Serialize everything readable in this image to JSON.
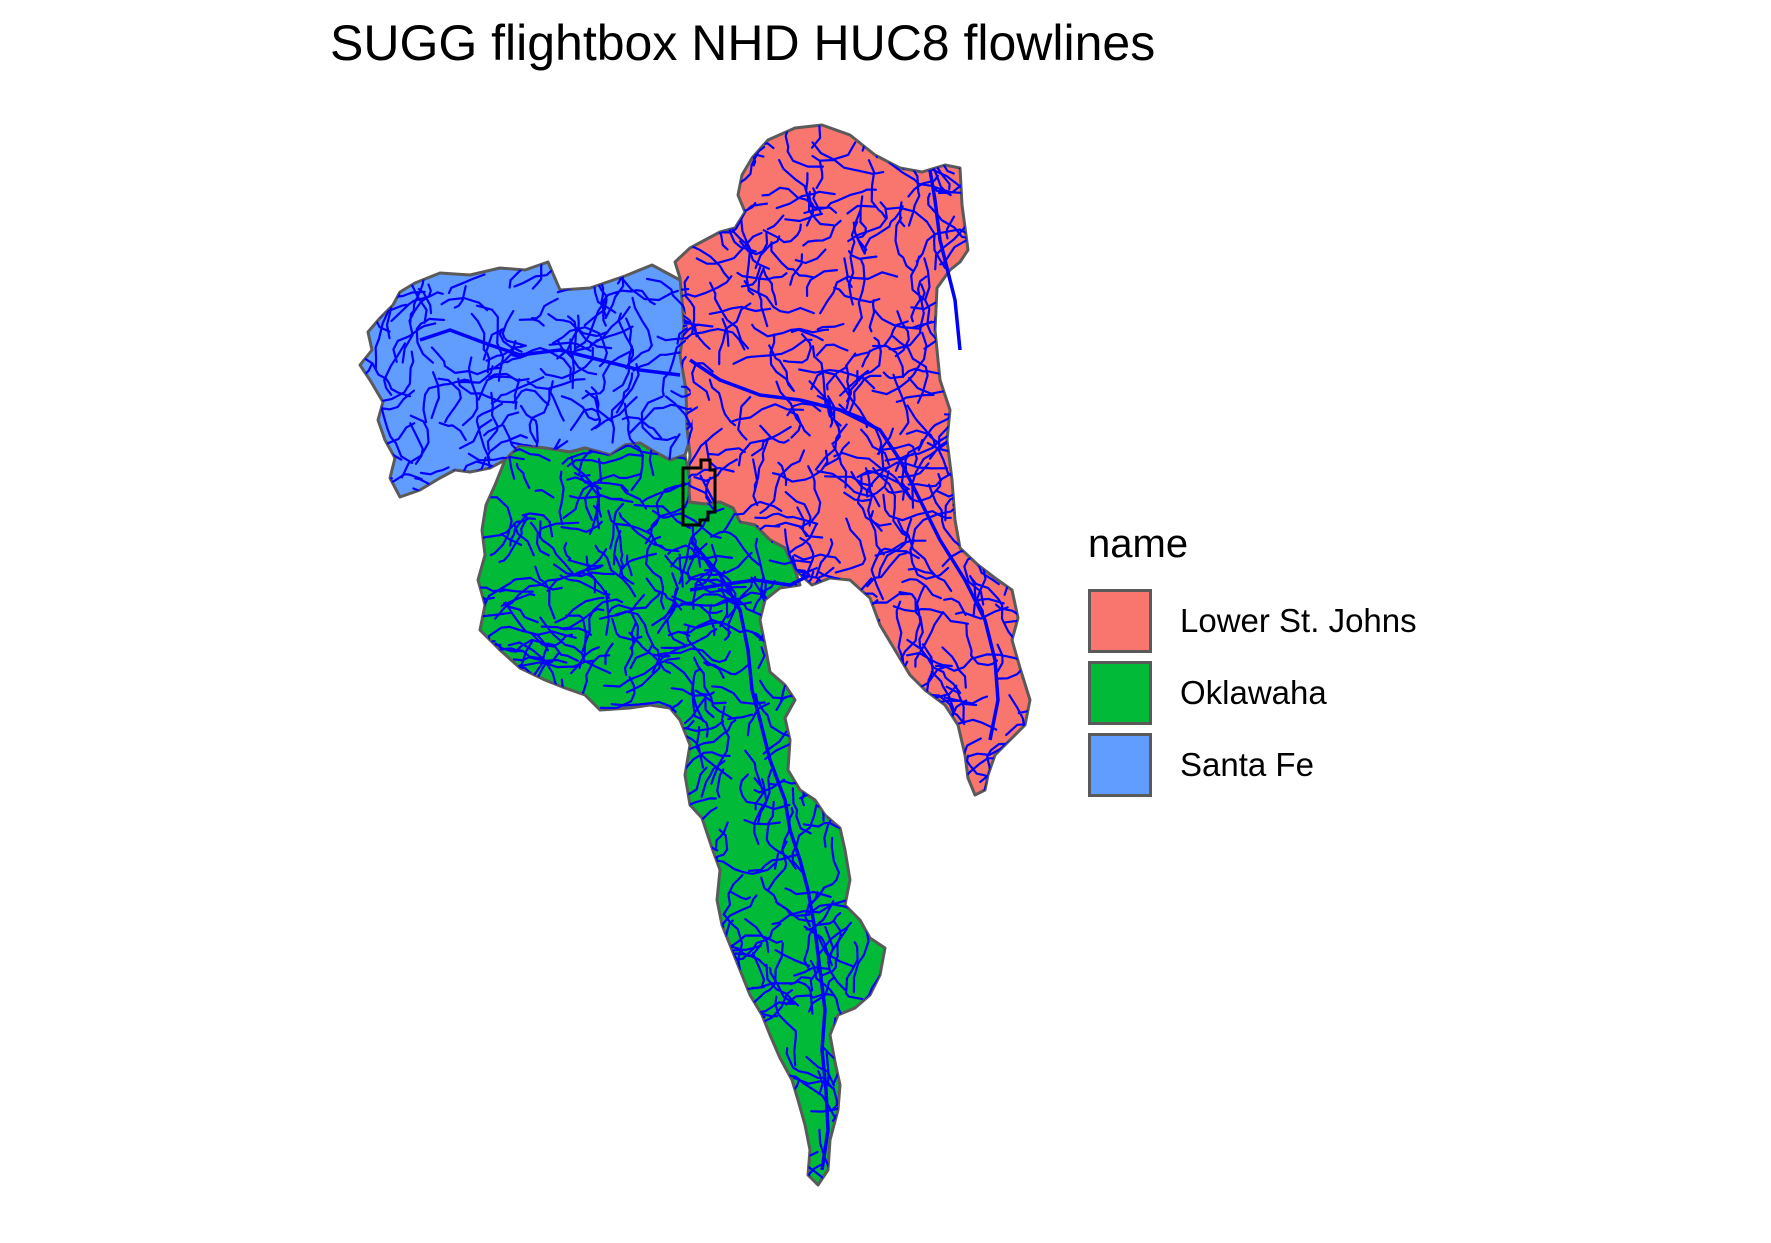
{
  "title": "SUGG flightbox NHD HUC8 flowlines",
  "legend": {
    "title": "name",
    "items": [
      {
        "label": "Lower St. Johns",
        "color": "#F8766D"
      },
      {
        "label": "Oklawaha",
        "color": "#00BA38"
      },
      {
        "label": "Santa Fe",
        "color": "#619CFF"
      }
    ]
  },
  "colors": {
    "flowline": "#0000FF",
    "boundary": "#5a5a5a",
    "flightbox": "#000000"
  }
}
